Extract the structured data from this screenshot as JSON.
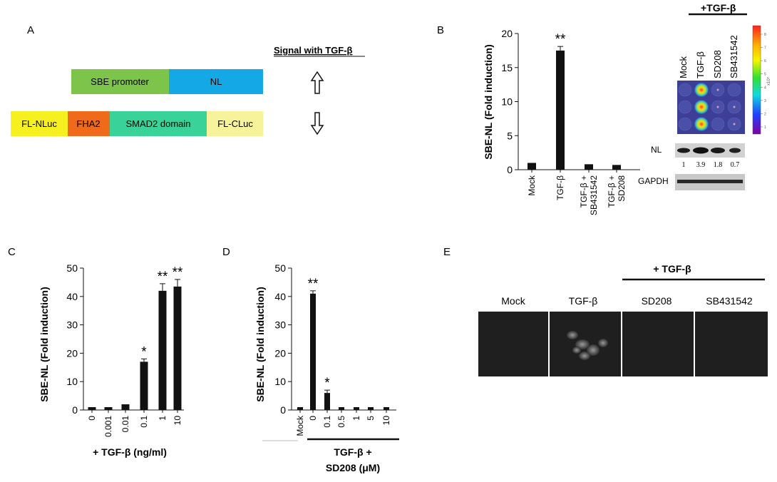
{
  "panels": {
    "A": {
      "letter": "A",
      "signal_label": "Signal with TGF-β",
      "reporter_blocks": [
        {
          "label": "SBE promoter",
          "color": "#7dc44b"
        },
        {
          "label": "NL",
          "color": "#14a9e6"
        }
      ],
      "sensor_blocks": [
        {
          "label": "FL-NLuc",
          "color": "#f7f020"
        },
        {
          "label": "FHA2",
          "color": "#ef6b1b"
        },
        {
          "label": "SMAD2 domain",
          "color": "#39d39a"
        },
        {
          "label": "FL-CLuc",
          "color": "#f7f39a"
        }
      ],
      "arrows": [
        "up-arrow-icon",
        "down-arrow-icon"
      ]
    },
    "B": {
      "letter": "B",
      "ylabel": "SBE-NL (Fold induction)",
      "treat_bar_label": "+TGF-β",
      "lane_labels": [
        "Mock",
        "TGF-β",
        "SD208",
        "SB431542"
      ],
      "wb_rows": [
        {
          "label": "NL",
          "values": [
            "1",
            "3.9",
            "1.8",
            "0.7"
          ]
        },
        {
          "label": "GAPDH",
          "values": []
        }
      ],
      "colorbar_ticks": [
        "8",
        "7",
        "6",
        "5",
        "4",
        "3",
        "2",
        "1"
      ],
      "colorbar_unit": "x10⁵"
    },
    "C": {
      "letter": "C",
      "ylabel": "SBE-NL (Fold induction)",
      "xlabel": "+ TGF-β (ng/ml)"
    },
    "D": {
      "letter": "D",
      "ylabel": "SBE-NL (Fold induction)",
      "group_label_line1": "TGF-β +",
      "group_label_line2": "SD208 (μM)"
    },
    "E": {
      "letter": "E",
      "treat_label": "+ TGF-β",
      "image_labels": [
        "Mock",
        "TGF-β",
        "SD208",
        "SB431542"
      ]
    }
  },
  "chart_data": [
    {
      "panel": "B",
      "type": "bar",
      "categories": [
        "Mock",
        "TGF-β",
        "TGF-β + SB431542",
        "TGF-β + SD208"
      ],
      "values": [
        1,
        17.5,
        0.8,
        0.7
      ],
      "errors": [
        0,
        0.6,
        0,
        0
      ],
      "significance": [
        "",
        "**",
        "",
        ""
      ],
      "ylabel": "SBE-NL (Fold induction)",
      "ylim": [
        0,
        20
      ],
      "yticks": [
        0,
        5,
        10,
        15,
        20
      ],
      "bar_color": "#111111"
    },
    {
      "panel": "C",
      "type": "bar",
      "categories": [
        "0",
        "0.001",
        "0.01",
        "0.1",
        "1",
        "10"
      ],
      "values": [
        1,
        1,
        2,
        17,
        42,
        43.5
      ],
      "errors": [
        0,
        0,
        0,
        1,
        2.5,
        2.5
      ],
      "significance": [
        "",
        "",
        "",
        "*",
        "**",
        "**"
      ],
      "ylabel": "SBE-NL (Fold induction)",
      "xlabel": "+ TGF-β (ng/ml)",
      "ylim": [
        0,
        50
      ],
      "yticks": [
        0,
        10,
        20,
        30,
        40,
        50
      ],
      "bar_color": "#111111"
    },
    {
      "panel": "D",
      "type": "bar",
      "categories": [
        "Mock",
        "0",
        "0.1",
        "0.5",
        "1",
        "5",
        "10"
      ],
      "values": [
        1,
        41,
        6,
        1,
        1,
        1,
        1
      ],
      "errors": [
        0,
        1,
        1,
        0,
        0,
        0,
        0
      ],
      "significance": [
        "",
        "**",
        "*",
        "",
        "",
        "",
        ""
      ],
      "ylabel": "SBE-NL (Fold induction)",
      "ylim": [
        0,
        50
      ],
      "yticks": [
        0,
        10,
        20,
        30,
        40,
        50
      ],
      "bar_color": "#111111"
    }
  ]
}
